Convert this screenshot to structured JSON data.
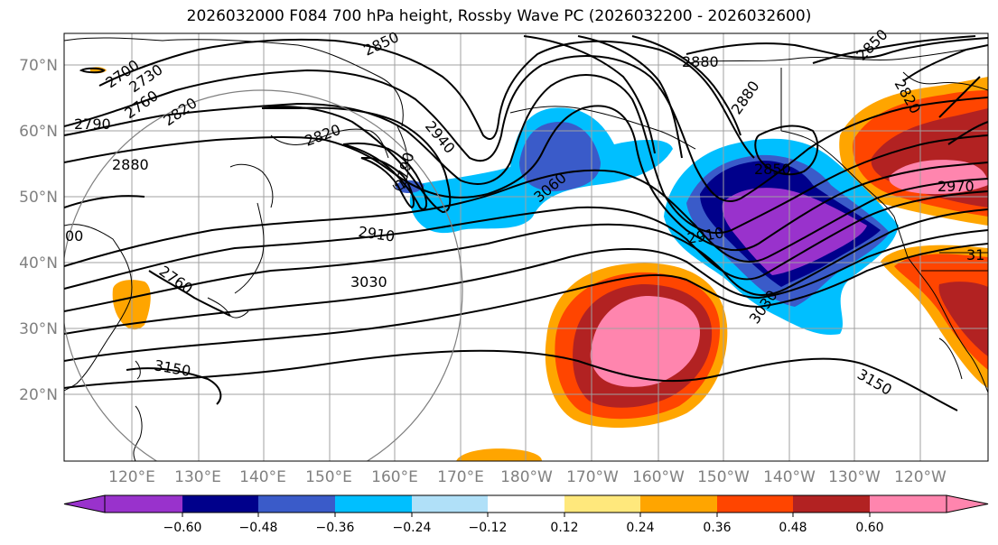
{
  "title": "2026032000 F084 700 hPa height, Rossby Wave PC (2026032200 - 2026032600)",
  "lat_labels": [
    "70°N",
    "60°N",
    "50°N",
    "40°N",
    "30°N",
    "20°N"
  ],
  "lon_labels": [
    "120°E",
    "130°E",
    "140°E",
    "150°E",
    "160°E",
    "170°E",
    "180°W",
    "170°W",
    "160°W",
    "150°W",
    "140°W",
    "130°W",
    "120°W"
  ],
  "contour_labels": [
    "2700",
    "2730",
    "2760",
    "2790",
    "2820",
    "2880",
    "2820",
    "2850",
    "2940",
    "2790",
    "2910",
    "3030",
    "3060",
    "3150",
    "2760",
    "2880",
    "2880",
    "2850",
    "2910",
    "3030",
    "3150",
    "2850",
    "2820",
    "2970",
    "00",
    "31"
  ],
  "colorbar": {
    "ticks": [
      "−0.60",
      "−0.48",
      "−0.36",
      "−0.24",
      "−0.12",
      "0.12",
      "0.24",
      "0.36",
      "0.48",
      "0.60"
    ],
    "colors": [
      "#9932CC",
      "#00008B",
      "#3A5BC9",
      "#00BFFF",
      "#B0E0F8",
      "#FFFFFF",
      "#FFE87C",
      "#FFA500",
      "#FF4500",
      "#B22222",
      "#FF85AE"
    ]
  }
}
